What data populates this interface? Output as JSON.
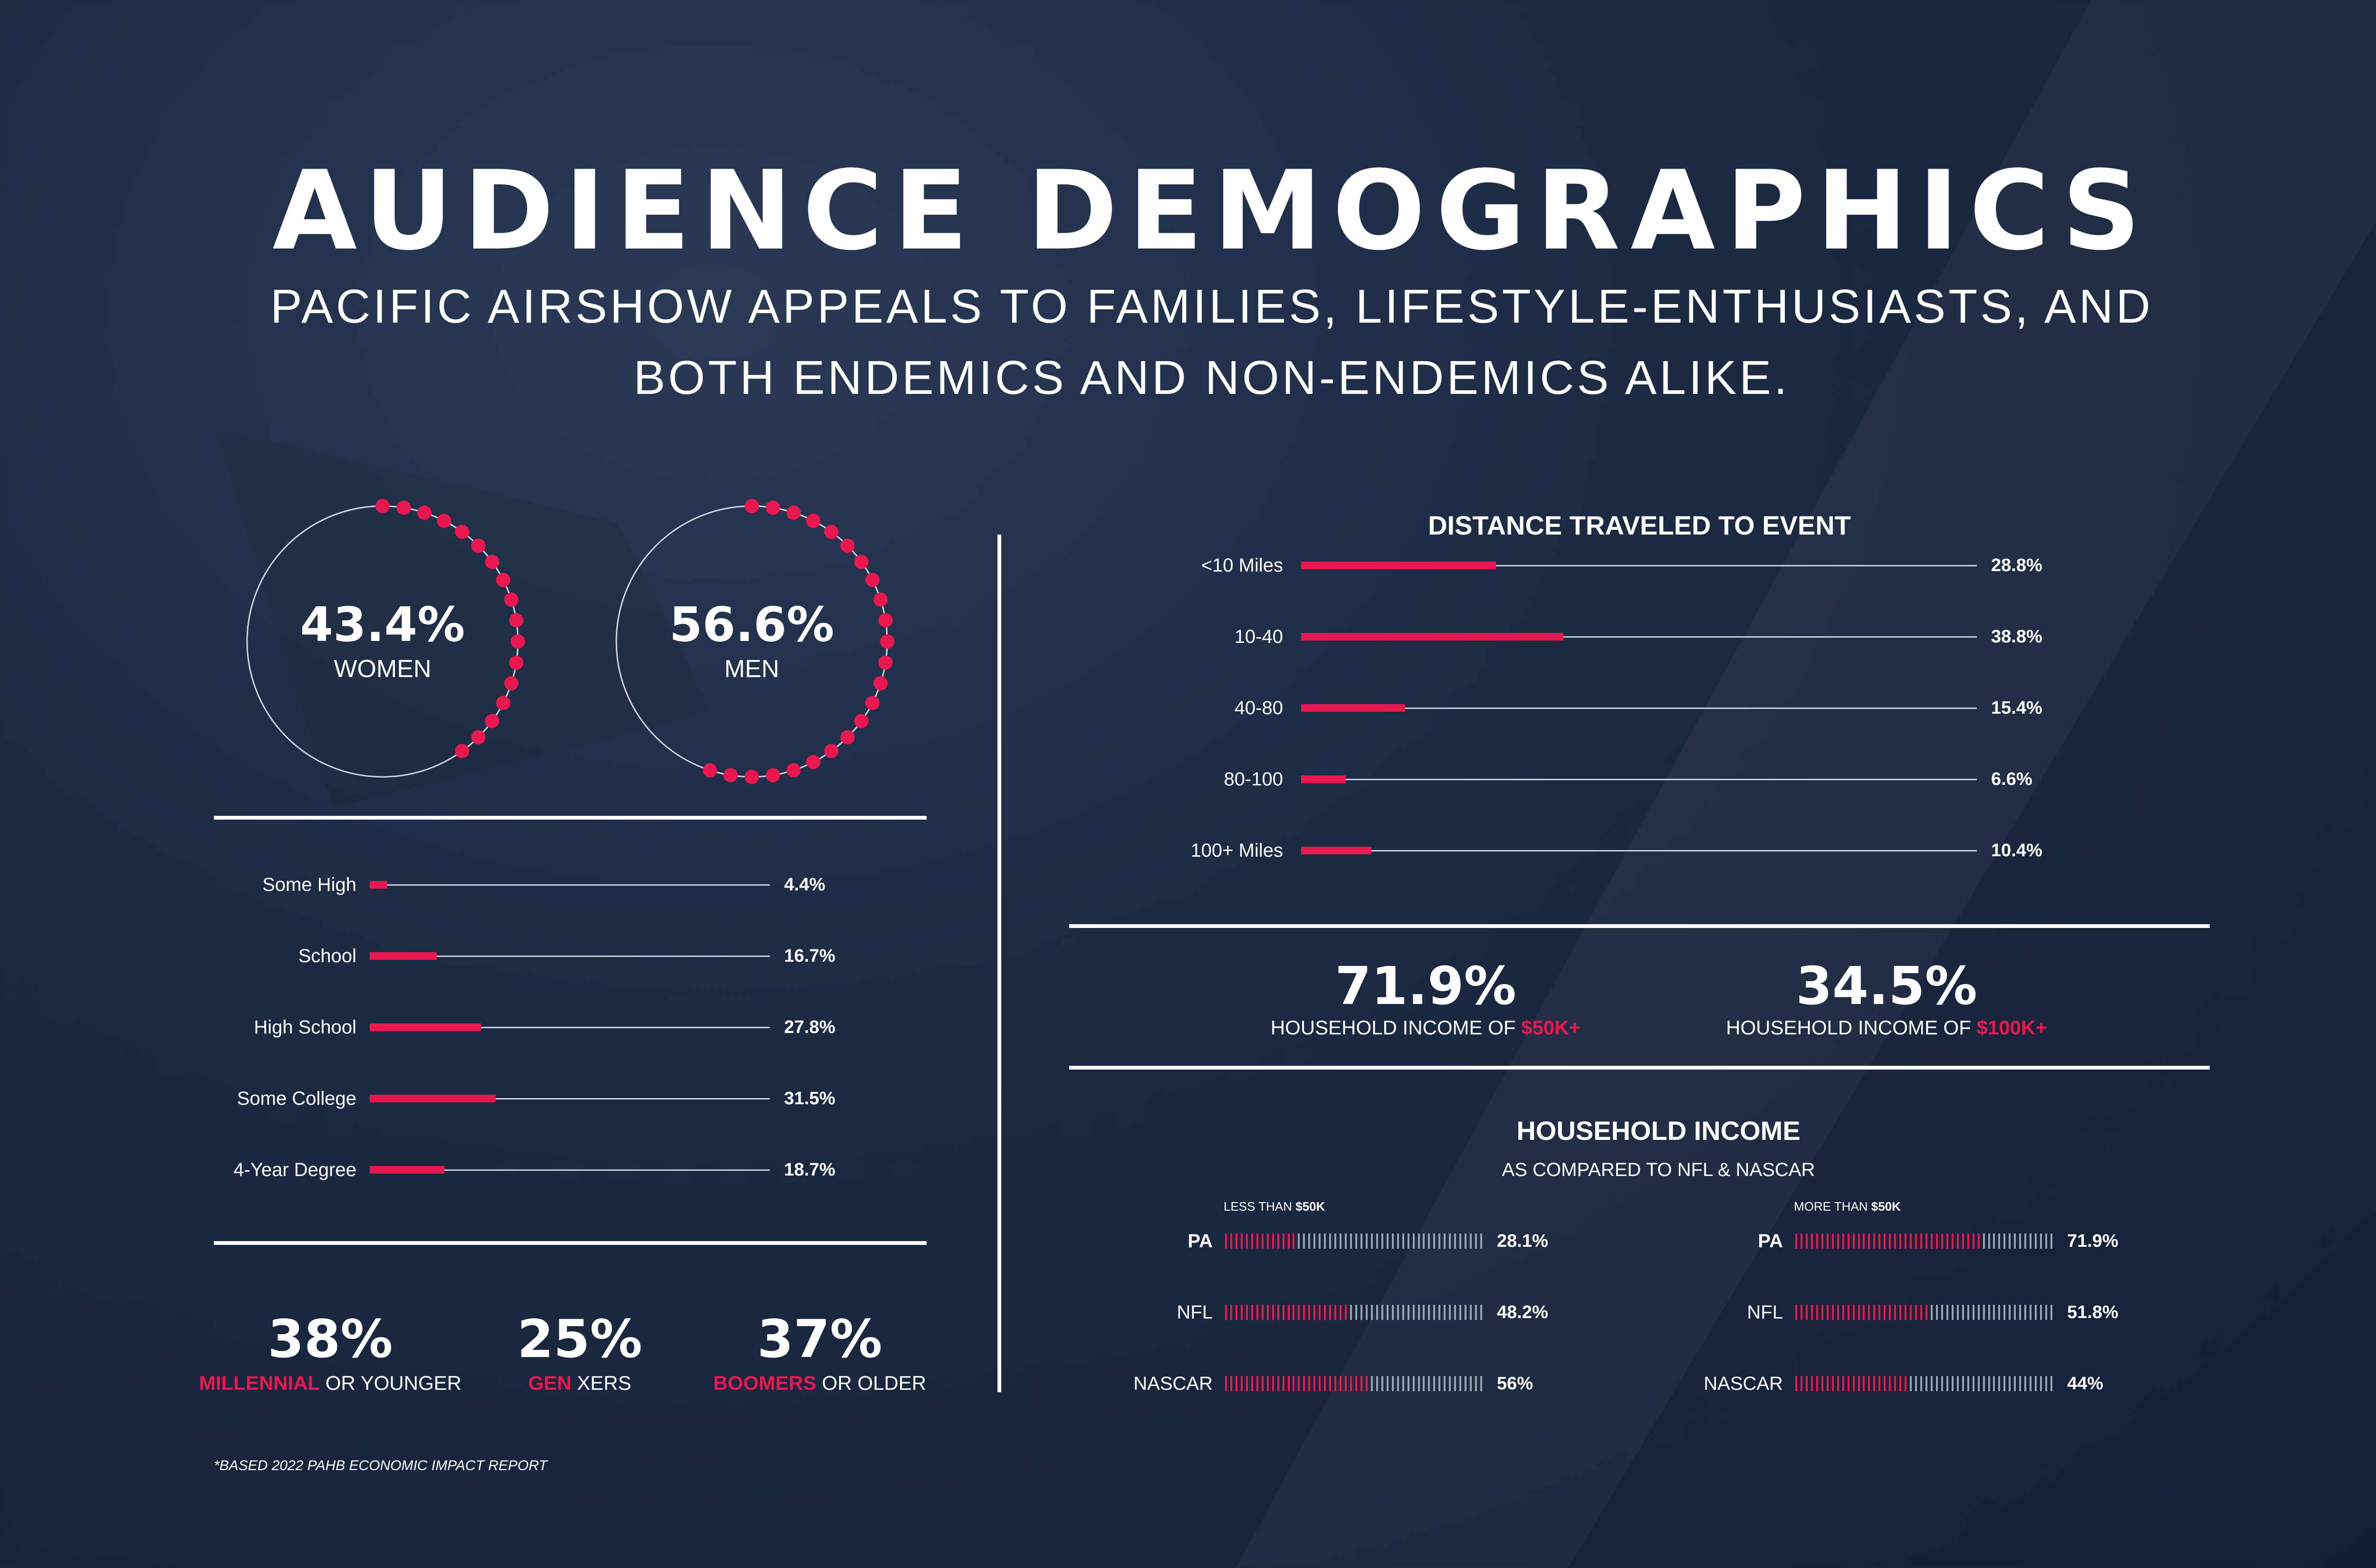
{
  "header": {
    "title": "AUDIENCE DEMOGRAPHICS",
    "subtitle_line1": "PACIFIC AIRSHOW APPEALS TO FAMILIES, LIFESTYLE-ENTHUSIASTS, AND",
    "subtitle_line2": "BOTH ENDEMICS AND NON-ENDEMICS ALIKE."
  },
  "colors": {
    "accent": "#e8194f",
    "line": "#ffffff",
    "background": "#1c2a44"
  },
  "gender": [
    {
      "value": "43.4%",
      "label": "WOMEN",
      "fraction": 0.434
    },
    {
      "value": "56.6%",
      "label": "MEN",
      "fraction": 0.566
    }
  ],
  "generations": [
    {
      "value": "38%",
      "accent": "MILLENNIAL",
      "rest": " OR YOUNGER"
    },
    {
      "value": "25%",
      "accent": "GEN",
      "rest": " XERS"
    },
    {
      "value": "37%",
      "accent": "BOOMERS",
      "rest": " OR OLDER"
    }
  ],
  "footnote": "*BASED 2022 PAHB ECONOMIC IMPACT REPORT",
  "income_highlights": [
    {
      "value": "71.9%",
      "prefix": "HOUSEHOLD INCOME OF ",
      "accent": "$50K+"
    },
    {
      "value": "34.5%",
      "prefix": "HOUSEHOLD INCOME OF ",
      "accent": "$100K+"
    }
  ],
  "household_income": {
    "title": "HOUSEHOLD INCOME",
    "subtitle": "AS COMPARED TO NFL & NASCAR",
    "less_header_prefix": "LESS  THAN ",
    "less_header_accent": "$50K",
    "more_header_prefix": "MORE THAN ",
    "more_header_accent": "$50K"
  },
  "chart_data": [
    {
      "type": "bar",
      "title": "",
      "orientation": "horizontal",
      "categories": [
        "Some High",
        "School",
        "High School",
        "Some College",
        "4-Year Degree"
      ],
      "values": [
        4.4,
        16.7,
        27.8,
        31.5,
        18.7
      ],
      "value_labels": [
        "4.4%",
        "16.7%",
        "27.8%",
        "31.5%",
        "18.7%"
      ],
      "xlim": [
        0,
        100
      ]
    },
    {
      "type": "bar",
      "title": "DISTANCE TRAVELED TO EVENT",
      "orientation": "horizontal",
      "categories": [
        "<10 Miles",
        "10-40",
        "40-80",
        "80-100",
        "100+ Miles"
      ],
      "values": [
        28.8,
        38.8,
        15.4,
        6.6,
        10.4
      ],
      "value_labels": [
        "28.8%",
        "38.8%",
        "15.4%",
        "6.6%",
        "10.4%"
      ],
      "xlim": [
        0,
        100
      ]
    },
    {
      "type": "bar",
      "title": "HOUSEHOLD INCOME - LESS THAN $50K",
      "orientation": "horizontal",
      "categories": [
        "PA",
        "NFL",
        "NASCAR"
      ],
      "values": [
        28.1,
        48.2,
        56
      ],
      "value_labels": [
        "28.1%",
        "48.2%",
        "56%"
      ],
      "xlim": [
        0,
        100
      ]
    },
    {
      "type": "bar",
      "title": "HOUSEHOLD INCOME - MORE THAN $50K",
      "orientation": "horizontal",
      "categories": [
        "PA",
        "NFL",
        "NASCAR"
      ],
      "values": [
        71.9,
        51.8,
        44
      ],
      "value_labels": [
        "71.9%",
        "51.8%",
        "44%"
      ],
      "xlim": [
        0,
        100
      ]
    }
  ]
}
